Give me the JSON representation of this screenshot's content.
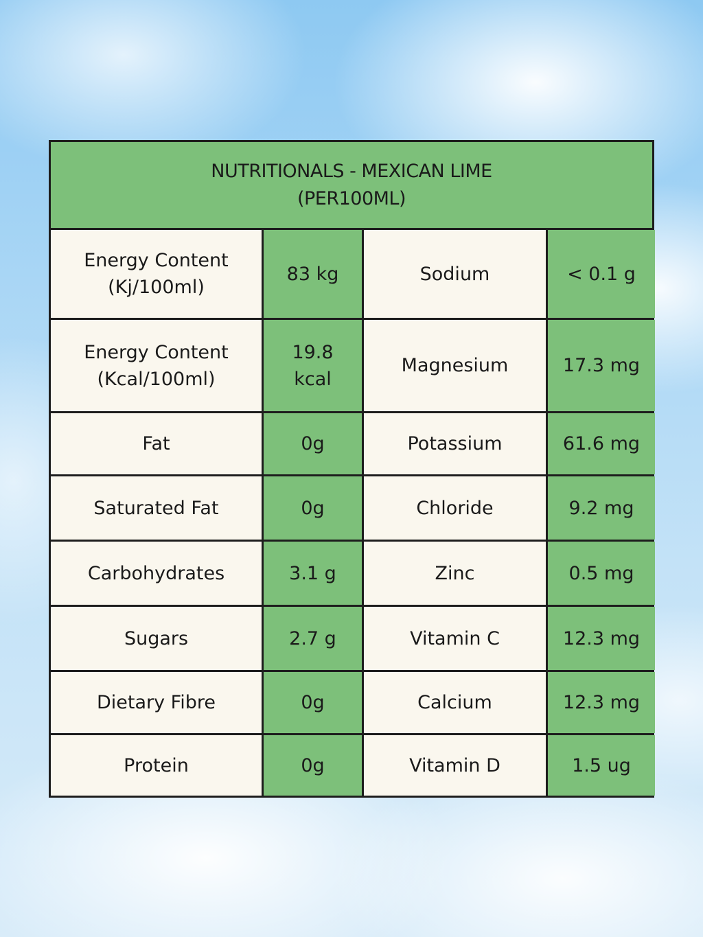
{
  "header": {
    "title_line1": "NUTRITIONALS - MEXICAN LIME",
    "title_line2": "(PER100ML)"
  },
  "rows": [
    {
      "left_label": [
        "Energy Content",
        "(Kj/100ml)"
      ],
      "left_value": [
        "83 kg"
      ],
      "right_label": [
        "Sodium"
      ],
      "right_value": [
        "< 0.1 g"
      ]
    },
    {
      "left_label": [
        "Energy Content",
        "(Kcal/100ml)"
      ],
      "left_value": [
        "19.8",
        "kcal"
      ],
      "right_label": [
        "Magnesium"
      ],
      "right_value": [
        "17.3 mg"
      ]
    },
    {
      "left_label": [
        "Fat"
      ],
      "left_value": [
        "0g"
      ],
      "right_label": [
        "Potassium"
      ],
      "right_value": [
        "61.6 mg"
      ]
    },
    {
      "left_label": [
        "Saturated Fat"
      ],
      "left_value": [
        "0g"
      ],
      "right_label": [
        "Chloride"
      ],
      "right_value": [
        "9.2 mg"
      ]
    },
    {
      "left_label": [
        "Carbohydrates"
      ],
      "left_value": [
        "3.1 g"
      ],
      "right_label": [
        "Zinc"
      ],
      "right_value": [
        "0.5 mg"
      ]
    },
    {
      "left_label": [
        "Sugars"
      ],
      "left_value": [
        "2.7 g"
      ],
      "right_label": [
        "Vitamin C"
      ],
      "right_value": [
        "12.3 mg"
      ]
    },
    {
      "left_label": [
        "Dietary Fibre"
      ],
      "left_value": [
        "0g"
      ],
      "right_label": [
        "Calcium"
      ],
      "right_value": [
        "12.3 mg"
      ]
    },
    {
      "left_label": [
        "Protein"
      ],
      "left_value": [
        "0g"
      ],
      "right_label": [
        "Vitamin D"
      ],
      "right_value": [
        "1.5 ug"
      ]
    }
  ],
  "colors": {
    "green": "#7dc07a",
    "cream": "#faf7ee",
    "border": "#1d1d1d"
  }
}
